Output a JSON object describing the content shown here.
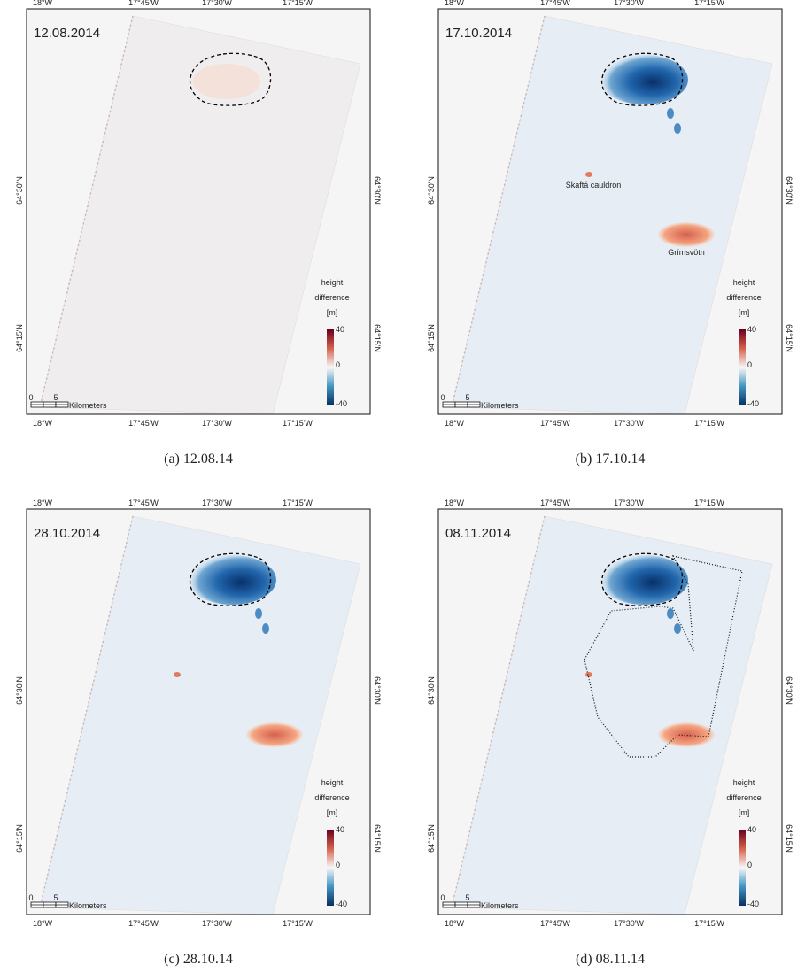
{
  "panels": [
    {
      "date": "12.08.2014",
      "caption": "(a) 12.08.14"
    },
    {
      "date": "17.10.2014",
      "caption": "(b) 17.10.14",
      "annotations": [
        "Skaftá cauldron",
        "Grímsvötn"
      ]
    },
    {
      "date": "28.10.2014",
      "caption": "(c) 28.10.14"
    },
    {
      "date": "08.11.2014",
      "caption": "(d) 08.11.14"
    }
  ],
  "longitude_labels": [
    "18°W",
    "17°45'W",
    "17°30'W",
    "17°15'W"
  ],
  "latitude_labels": [
    "64°30'N",
    "64°15'N"
  ],
  "legend": {
    "title": [
      "height",
      "difference",
      "[m]"
    ],
    "ticks": [
      40,
      0,
      -40
    ]
  },
  "scale_bar": {
    "ticks": [
      0,
      5
    ],
    "unit": "Kilometers"
  }
}
